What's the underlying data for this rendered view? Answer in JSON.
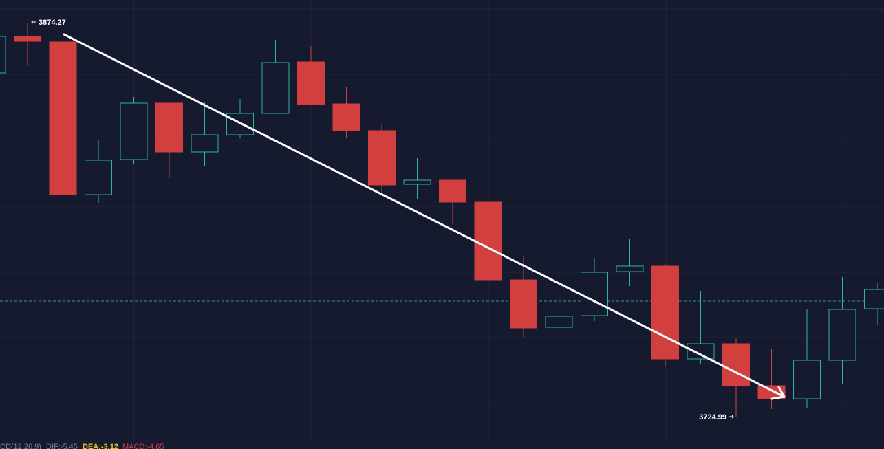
{
  "chart_data": {
    "type": "candlestick",
    "open": [
      3855.28,
      3869.07,
      3866.99,
      3809.25,
      3822.52,
      3843.84,
      3825.38,
      3831.88,
      3839.94,
      3859.45,
      3843.58,
      3833.44,
      3813.15,
      3814.71,
      3806.39,
      3777.0,
      3759.06,
      3763.48,
      3780.12,
      3782.21,
      3747.1,
      3752.82,
      3736.95,
      3732.01,
      3746.58,
      3766.08
    ],
    "high": [
      3871.15,
      3874.27,
      3869.85,
      3830.06,
      3846.18,
      3843.84,
      3844.36,
      3845.4,
      3867.77,
      3865.43,
      3849.82,
      3836.04,
      3823.04,
      3814.71,
      3808.99,
      3785.85,
      3774.66,
      3785.33,
      3792.61,
      3782.99,
      3772.84,
      3754.9,
      3751.0,
      3765.82,
      3778.04,
      3775.7
    ],
    "low": [
      3854.24,
      3857.89,
      3800.15,
      3806.13,
      3820.96,
      3815.49,
      3820.18,
      3830.58,
      3839.94,
      3843.32,
      3830.84,
      3809.25,
      3807.69,
      3798.07,
      3766.86,
      3754.9,
      3755.94,
      3761.4,
      3774.66,
      3744.5,
      3745.02,
      3724.99,
      3728.11,
      3728.63,
      3737.73,
      3760.1
    ],
    "close": [
      3869.07,
      3867.25,
      3809.25,
      3822.26,
      3843.84,
      3825.38,
      3831.88,
      3839.94,
      3859.19,
      3843.32,
      3833.44,
      3812.89,
      3814.71,
      3806.39,
      3777.0,
      3758.8,
      3763.22,
      3779.86,
      3782.21,
      3747.1,
      3752.82,
      3736.95,
      3732.01,
      3746.58,
      3765.82,
      3773.36
    ],
    "up_color": "#2bb5a6",
    "down_color": "#d23f3f",
    "ylim": [
      3713.03,
      3882.85
    ],
    "price_line": 3768.94,
    "high_marker": 3874.27,
    "low_marker": 3724.99,
    "indicator": {
      "name": "CD(12,26,9)",
      "dif": "DIF:-5.45",
      "dea": "DEA:-3.12",
      "macd": "MACD:-4.65",
      "name_color": "#7d8196",
      "dif_color": "#7d8196",
      "dea_color": "#e8c21e",
      "macd_color": "#c8414a"
    }
  }
}
